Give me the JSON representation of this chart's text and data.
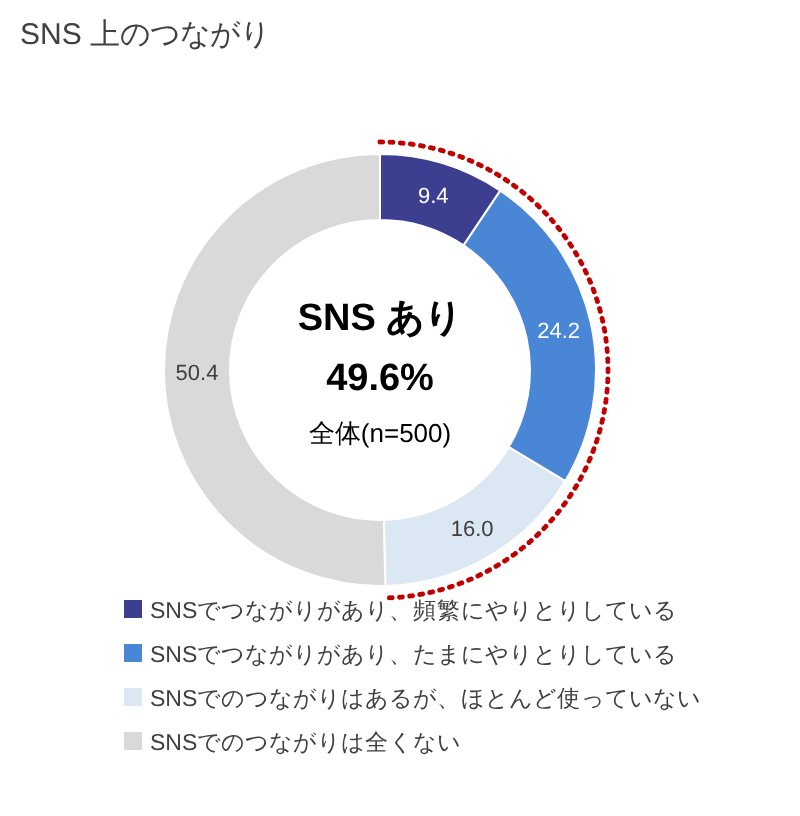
{
  "chart_data": {
    "type": "donut",
    "title": "SNS 上のつながり",
    "categories": [
      "SNSでつながりがあり、頻繁にやりとりしている",
      "SNSでつながりがあり、たまにやりとりしている",
      "SNSでのつながりはあるが、ほとんど使っていない",
      "SNSでのつながりは全くない"
    ],
    "values": [
      9.4,
      24.2,
      16.0,
      50.4
    ],
    "value_labels": [
      "9.4",
      "24.2",
      "16.0",
      "50.4"
    ],
    "colors": [
      "#3c3f8f",
      "#4a86d6",
      "#dce7f4",
      "#d9d9d9"
    ],
    "annotations": [
      "SNS あり",
      "49.6%",
      "全体(n=500)"
    ],
    "legend": "bottom"
  }
}
